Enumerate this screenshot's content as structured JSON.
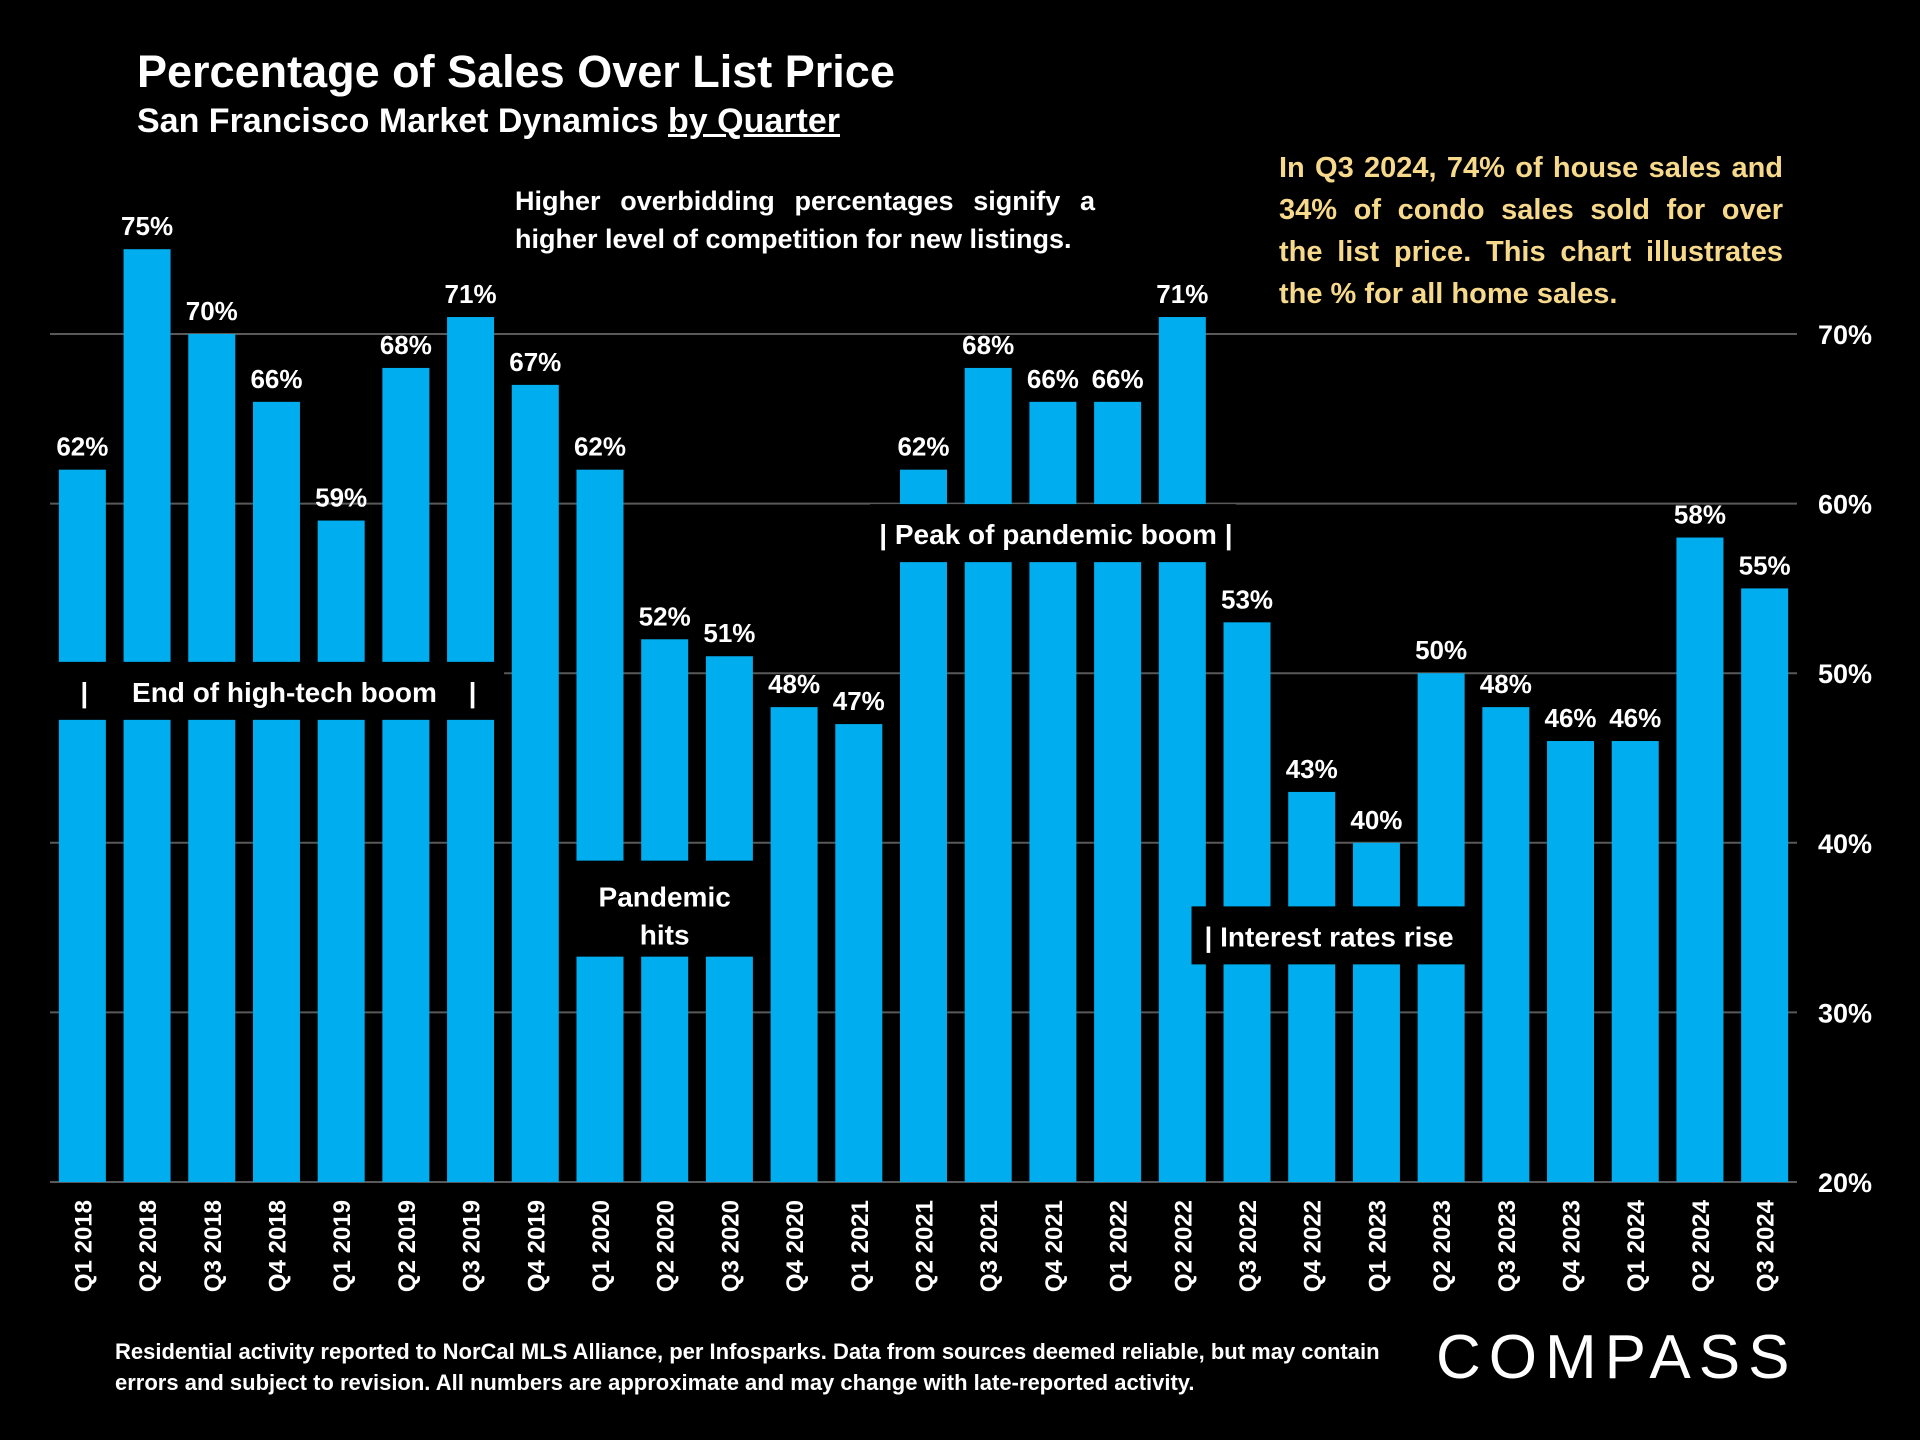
{
  "header": {
    "title": "Percentage of Sales Over List Price",
    "subtitle_prefix": "San Francisco Market Dynamics ",
    "subtitle_link": "by Quarter"
  },
  "notes": {
    "center": "Higher overbidding percentages signify a higher level of competition for new listings.",
    "right": "In Q3 2024, 74% of house sales and 34% of condo sales sold for over the list price. This chart illustrates the % for all home sales."
  },
  "footer": {
    "text": "Residential activity reported to NorCal MLS Alliance, per Infosparks. Data from sources deemed reliable, but may contain errors and subject to revision. All numbers are approximate and may change with late-reported activity."
  },
  "brand": {
    "logo_text": "COMPASS"
  },
  "colors": {
    "background": "#000000",
    "bar": "#00aeef",
    "text": "#ffffff",
    "accent_note": "#f7d98b",
    "grid": "#595959"
  },
  "chart_data": {
    "type": "bar",
    "categories": [
      "Q1 2018",
      "Q2 2018",
      "Q3 2018",
      "Q4 2018",
      "Q1 2019",
      "Q2 2019",
      "Q3 2019",
      "Q4 2019",
      "Q1 2020",
      "Q2 2020",
      "Q3 2020",
      "Q4 2020",
      "Q1 2021",
      "Q2 2021",
      "Q3 2021",
      "Q4 2021",
      "Q1 2022",
      "Q2 2022",
      "Q3 2022",
      "Q4 2022",
      "Q1 2023",
      "Q2 2023",
      "Q3 2023",
      "Q4 2023",
      "Q1 2024",
      "Q2 2024",
      "Q3 2024"
    ],
    "values": [
      62,
      75,
      70,
      66,
      59,
      68,
      71,
      67,
      62,
      52,
      51,
      48,
      47,
      62,
      68,
      66,
      66,
      71,
      53,
      43,
      40,
      50,
      48,
      46,
      46,
      58,
      55
    ],
    "data_labels": [
      "62%",
      "75%",
      "70%",
      "66%",
      "59%",
      "68%",
      "71%",
      "67%",
      "62%",
      "52%",
      "51%",
      "48%",
      "47%",
      "62%",
      "68%",
      "66%",
      "66%",
      "71%",
      "53%",
      "43%",
      "40%",
      "50%",
      "48%",
      "46%",
      "46%",
      "58%",
      "55%"
    ],
    "yaxis_position": "right",
    "ylim": [
      20,
      76
    ],
    "yticks": [
      20,
      30,
      40,
      50,
      60,
      70
    ],
    "ytick_labels": [
      "20%",
      "30%",
      "40%",
      "50%",
      "60%",
      "70%"
    ],
    "grid": true,
    "annotations": [
      {
        "text": "End of high-tech boom",
        "prefix": "|",
        "suffix": "|",
        "from": 0,
        "to": 6,
        "y": 48.9
      },
      {
        "text": "| Peak of pandemic boom |",
        "from": 13,
        "to": 17,
        "y": 58.2
      },
      {
        "text": "Pandemic hits",
        "lines": [
          "Pandemic",
          "hits"
        ],
        "from": 8,
        "to": 10,
        "y": 36
      },
      {
        "text": "| Interest rates rise",
        "from": 18,
        "to": 21,
        "y": 34.6
      }
    ]
  }
}
